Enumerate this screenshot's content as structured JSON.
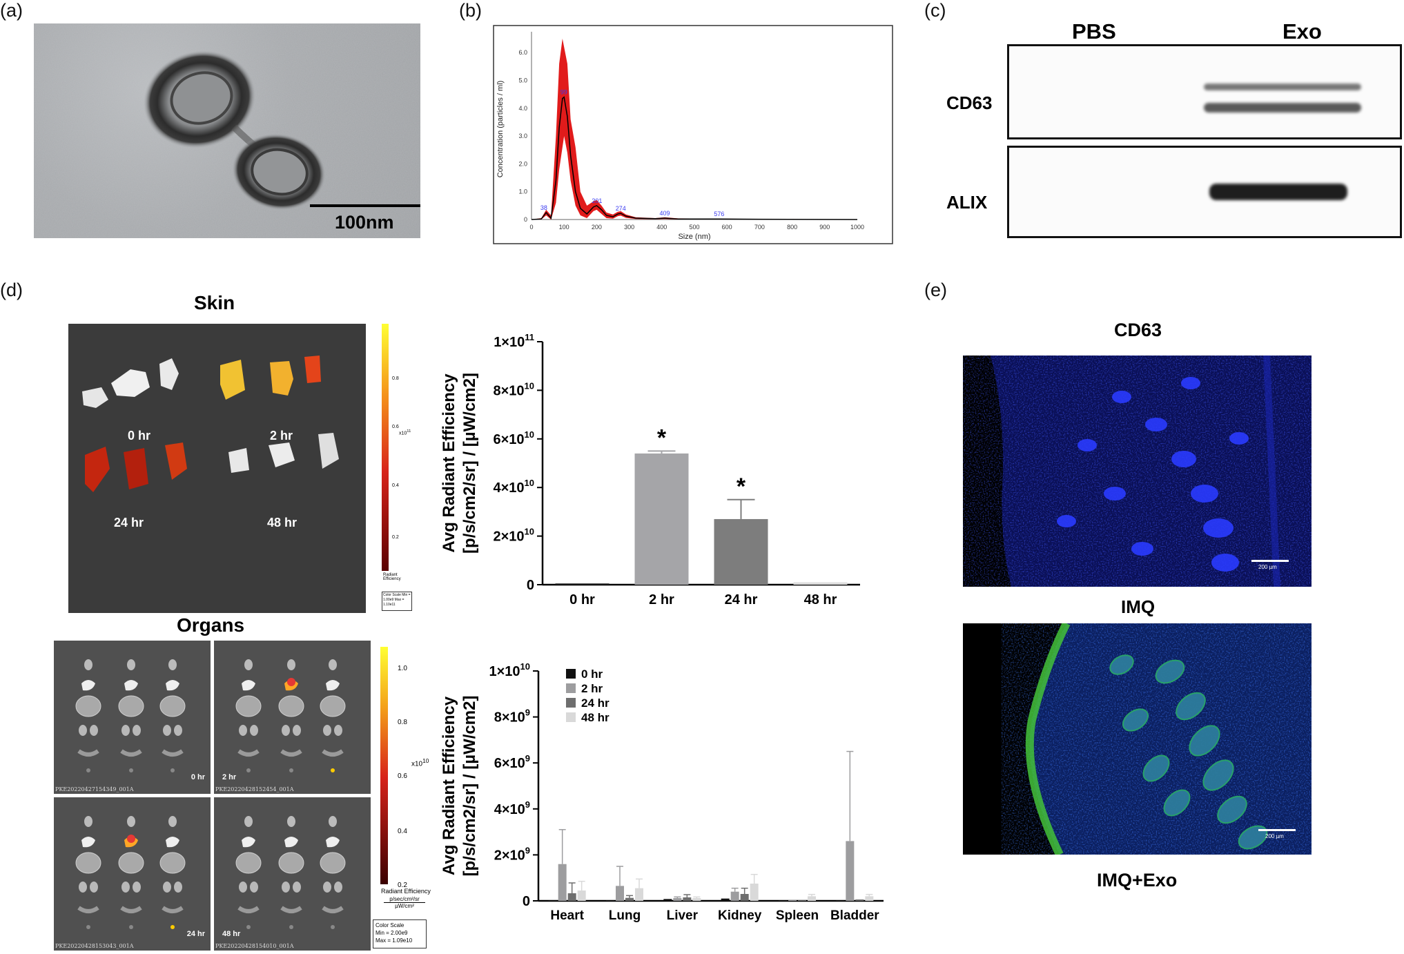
{
  "panels": {
    "a": {
      "label": "(a)",
      "scale_bar": "100nm"
    },
    "b": {
      "label": "(b)",
      "chart_data": {
        "type": "line",
        "xlabel": "Size (nm)",
        "ylabel": "Concentration (particles / ml)",
        "xlim": [
          0,
          1000
        ],
        "ylim": [
          0,
          6.5
        ],
        "x_ticks": [
          "0",
          "100",
          "200",
          "300",
          "400",
          "500",
          "600",
          "700",
          "800",
          "900",
          "1000"
        ],
        "y_ticks": [
          "0",
          "1.0",
          "2.0",
          "3.0",
          "4.0",
          "5.0",
          "6.0"
        ],
        "peak_labels": [
          "38",
          "99",
          "201",
          "274",
          "409",
          "576"
        ],
        "x": [
          0,
          30,
          45,
          60,
          75,
          85,
          95,
          100,
          110,
          120,
          135,
          150,
          170,
          190,
          200,
          215,
          230,
          250,
          265,
          274,
          290,
          320,
          380,
          409,
          450,
          576,
          700,
          1000
        ],
        "mean": [
          0,
          0.02,
          0.25,
          0.05,
          1.4,
          3.3,
          4.35,
          4.4,
          3.7,
          2.3,
          1.0,
          0.4,
          0.2,
          0.45,
          0.5,
          0.35,
          0.15,
          0.1,
          0.2,
          0.22,
          0.12,
          0.05,
          0.03,
          0.05,
          0.02,
          0.02,
          0.01,
          0
        ],
        "upper": [
          0,
          0.05,
          0.35,
          0.15,
          3.0,
          5.6,
          6.5,
          6.2,
          5.6,
          3.6,
          2.6,
          1.0,
          0.5,
          0.65,
          0.7,
          0.5,
          0.25,
          0.18,
          0.28,
          0.3,
          0.18,
          0.08,
          0.05,
          0.08,
          0.04,
          0.03,
          0.02,
          0
        ],
        "lower": [
          0,
          0,
          0.15,
          0,
          0.6,
          1.8,
          2.6,
          3.0,
          2.4,
          1.4,
          0.5,
          0.15,
          0.05,
          0.3,
          0.35,
          0.2,
          0.05,
          0.03,
          0.12,
          0.14,
          0.06,
          0.02,
          0.01,
          0.02,
          0,
          0,
          0,
          0
        ],
        "band_color": "#e11b1b",
        "line_color": "#000000"
      }
    },
    "c": {
      "label": "(c)",
      "columns": [
        "PBS",
        "Exo"
      ],
      "rows": [
        "CD63",
        "ALIX"
      ]
    },
    "d": {
      "label": "(d)",
      "skin_title": "Skin",
      "organs_title": "Organs",
      "skin_times": [
        "0 hr",
        "2 hr",
        "24 hr",
        "48 hr"
      ],
      "organ_times": [
        "0 hr",
        "2 hr",
        "24 hr",
        "48 hr"
      ],
      "organ_image_ids": [
        "PKE20220427154349_001A",
        "PKE20220428152454_001A",
        "PKE20220428153043_001A",
        "PKE20220428154010_001A"
      ],
      "skin_colorbar": {
        "ticks": [
          "0.8",
          "0.6",
          "0.4",
          "0.2"
        ],
        "exponent": "x10",
        "exponent_power": "11",
        "title": "Radiant Efficiency",
        "scale_box": "Color Scale Min = 1.00e9 Max = 1.10e11"
      },
      "organ_colorbar": {
        "ticks": [
          "1.0",
          "0.8",
          "0.6",
          "0.4",
          "0.2"
        ],
        "exponent": "x10",
        "exponent_power": "10",
        "title": "Radiant Efficiency",
        "units_line1": "p/sec/cm²/sr",
        "units_line2": "µW/cm²",
        "scale_box_title": "Color Scale",
        "scale_box_min": "Min = 2.00e9",
        "scale_box_max": "Max = 1.09e10"
      },
      "chart_data": [
        {
          "type": "bar",
          "ylabel_line1": "Avg Radiant Efficiency",
          "ylabel_line2": "[p/s/cm2/sr] / [µW/cm2]",
          "ylim": [
            0,
            100000000000
          ],
          "y_ticks": [
            {
              "value": 0,
              "base": "0",
              "exp": ""
            },
            {
              "value": 20000000000,
              "base": "2×10",
              "exp": "10"
            },
            {
              "value": 40000000000,
              "base": "4×10",
              "exp": "10"
            },
            {
              "value": 60000000000,
              "base": "6×10",
              "exp": "10"
            },
            {
              "value": 80000000000,
              "base": "8×10",
              "exp": "10"
            },
            {
              "value": 100000000000,
              "base": "1×10",
              "exp": "11"
            }
          ],
          "categories": [
            "0 hr",
            "2 hr",
            "24 hr",
            "48 hr"
          ],
          "values": [
            500000000,
            54000000000,
            27000000000,
            1000000000
          ],
          "errors": [
            200000000,
            1000000000,
            8000000000,
            200000000
          ],
          "colors": [
            "#1f1f1f",
            "#a5a5a8",
            "#7d7d7d",
            "#dcdcdc"
          ],
          "significance": [
            "",
            "*",
            "*",
            ""
          ]
        },
        {
          "type": "bar",
          "ylabel_line1": "Avg Radiant Efficiency",
          "ylabel_line2": "[p/s/cm2/sr] / [µW/cm2]",
          "ylim": [
            0,
            10000000000
          ],
          "y_ticks": [
            {
              "value": 0,
              "base": "0",
              "exp": ""
            },
            {
              "value": 2000000000,
              "base": "2×10",
              "exp": "9"
            },
            {
              "value": 4000000000,
              "base": "4×10",
              "exp": "9"
            },
            {
              "value": 6000000000,
              "base": "6×10",
              "exp": "9"
            },
            {
              "value": 8000000000,
              "base": "8×10",
              "exp": "9"
            },
            {
              "value": 10000000000,
              "base": "1×10",
              "exp": "10"
            }
          ],
          "categories": [
            "Heart",
            "Lung",
            "Liver",
            "Kidney",
            "Spleen",
            "Bladder"
          ],
          "series": [
            {
              "name": "0 hr",
              "color": "#111111",
              "values": [
                30000000,
                30000000,
                80000000,
                100000000,
                30000000,
                30000000
              ],
              "errors": [
                10000000,
                10000000,
                20000000,
                30000000,
                10000000,
                10000000
              ]
            },
            {
              "name": "2 hr",
              "color": "#9d9d9f",
              "values": [
                1600000000,
                650000000,
                120000000,
                400000000,
                50000000,
                2600000000
              ],
              "errors": [
                1500000000,
                850000000,
                50000000,
                150000000,
                20000000,
                3900000000
              ]
            },
            {
              "name": "24 hr",
              "color": "#6e6e6e",
              "values": [
                330000000,
                130000000,
                150000000,
                300000000,
                30000000,
                60000000
              ],
              "errors": [
                450000000,
                100000000,
                120000000,
                250000000,
                20000000,
                20000000
              ]
            },
            {
              "name": "48 hr",
              "color": "#d9d9d9",
              "values": [
                450000000,
                550000000,
                120000000,
                750000000,
                200000000,
                200000000
              ],
              "errors": [
                400000000,
                400000000,
                50000000,
                400000000,
                80000000,
                80000000
              ]
            }
          ]
        }
      ]
    },
    "e": {
      "label": "(e)",
      "titles": [
        "CD63",
        "IMQ",
        "IMQ+Exo"
      ],
      "scale_bar": "200 µm"
    }
  }
}
